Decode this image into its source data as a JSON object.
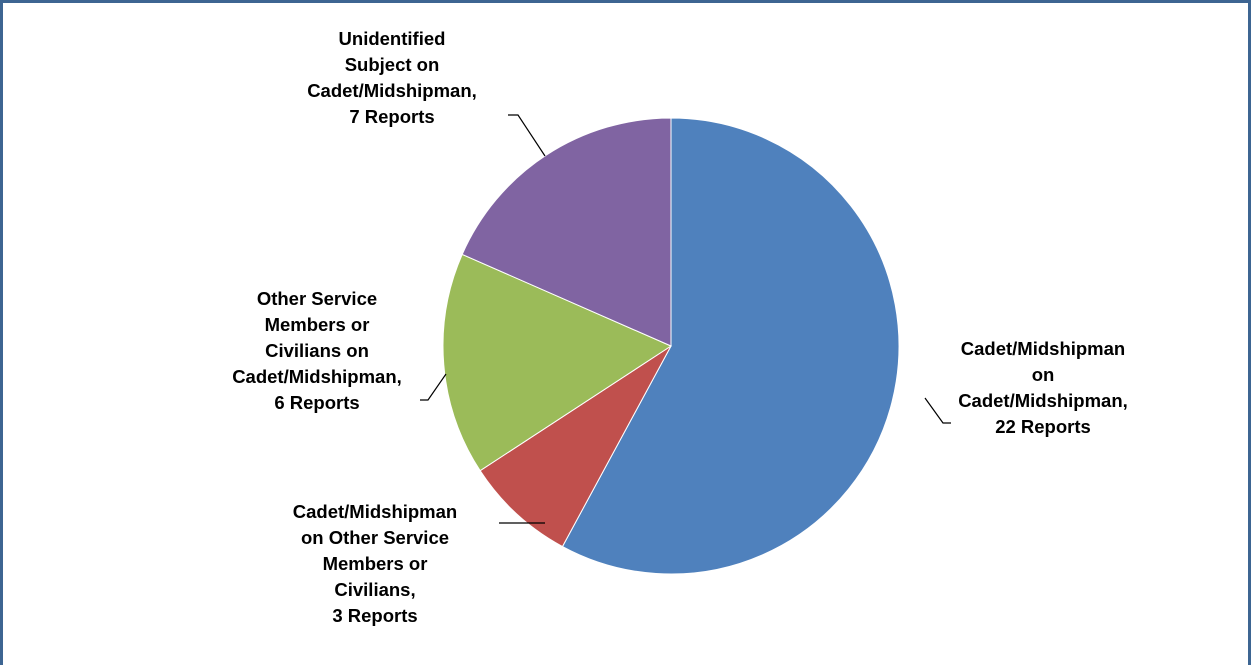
{
  "chart_data": {
    "type": "pie",
    "title": "",
    "start_angle_deg": 0,
    "direction": "clockwise",
    "slice_border": "#ffffff",
    "slices": [
      {
        "label_lines": [
          "Cadet/Midshipman",
          "on",
          "Cadet/Midshipman,",
          "22 Reports"
        ],
        "value": 22,
        "color": "#4f81bd"
      },
      {
        "label_lines": [
          "Cadet/Midshipman",
          "on Other Service",
          "Members or",
          "Civilians,",
          "3 Reports"
        ],
        "value": 3,
        "color": "#c0504d"
      },
      {
        "label_lines": [
          "Other Service",
          "Members or",
          "Civilians on",
          "Cadet/Midshipman,",
          "6 Reports"
        ],
        "value": 6,
        "color": "#9bbb59"
      },
      {
        "label_lines": [
          "Unidentified",
          "Subject on",
          "Cadet/Midshipman,",
          "7 Reports"
        ],
        "value": 7,
        "color": "#8064a2"
      }
    ]
  }
}
